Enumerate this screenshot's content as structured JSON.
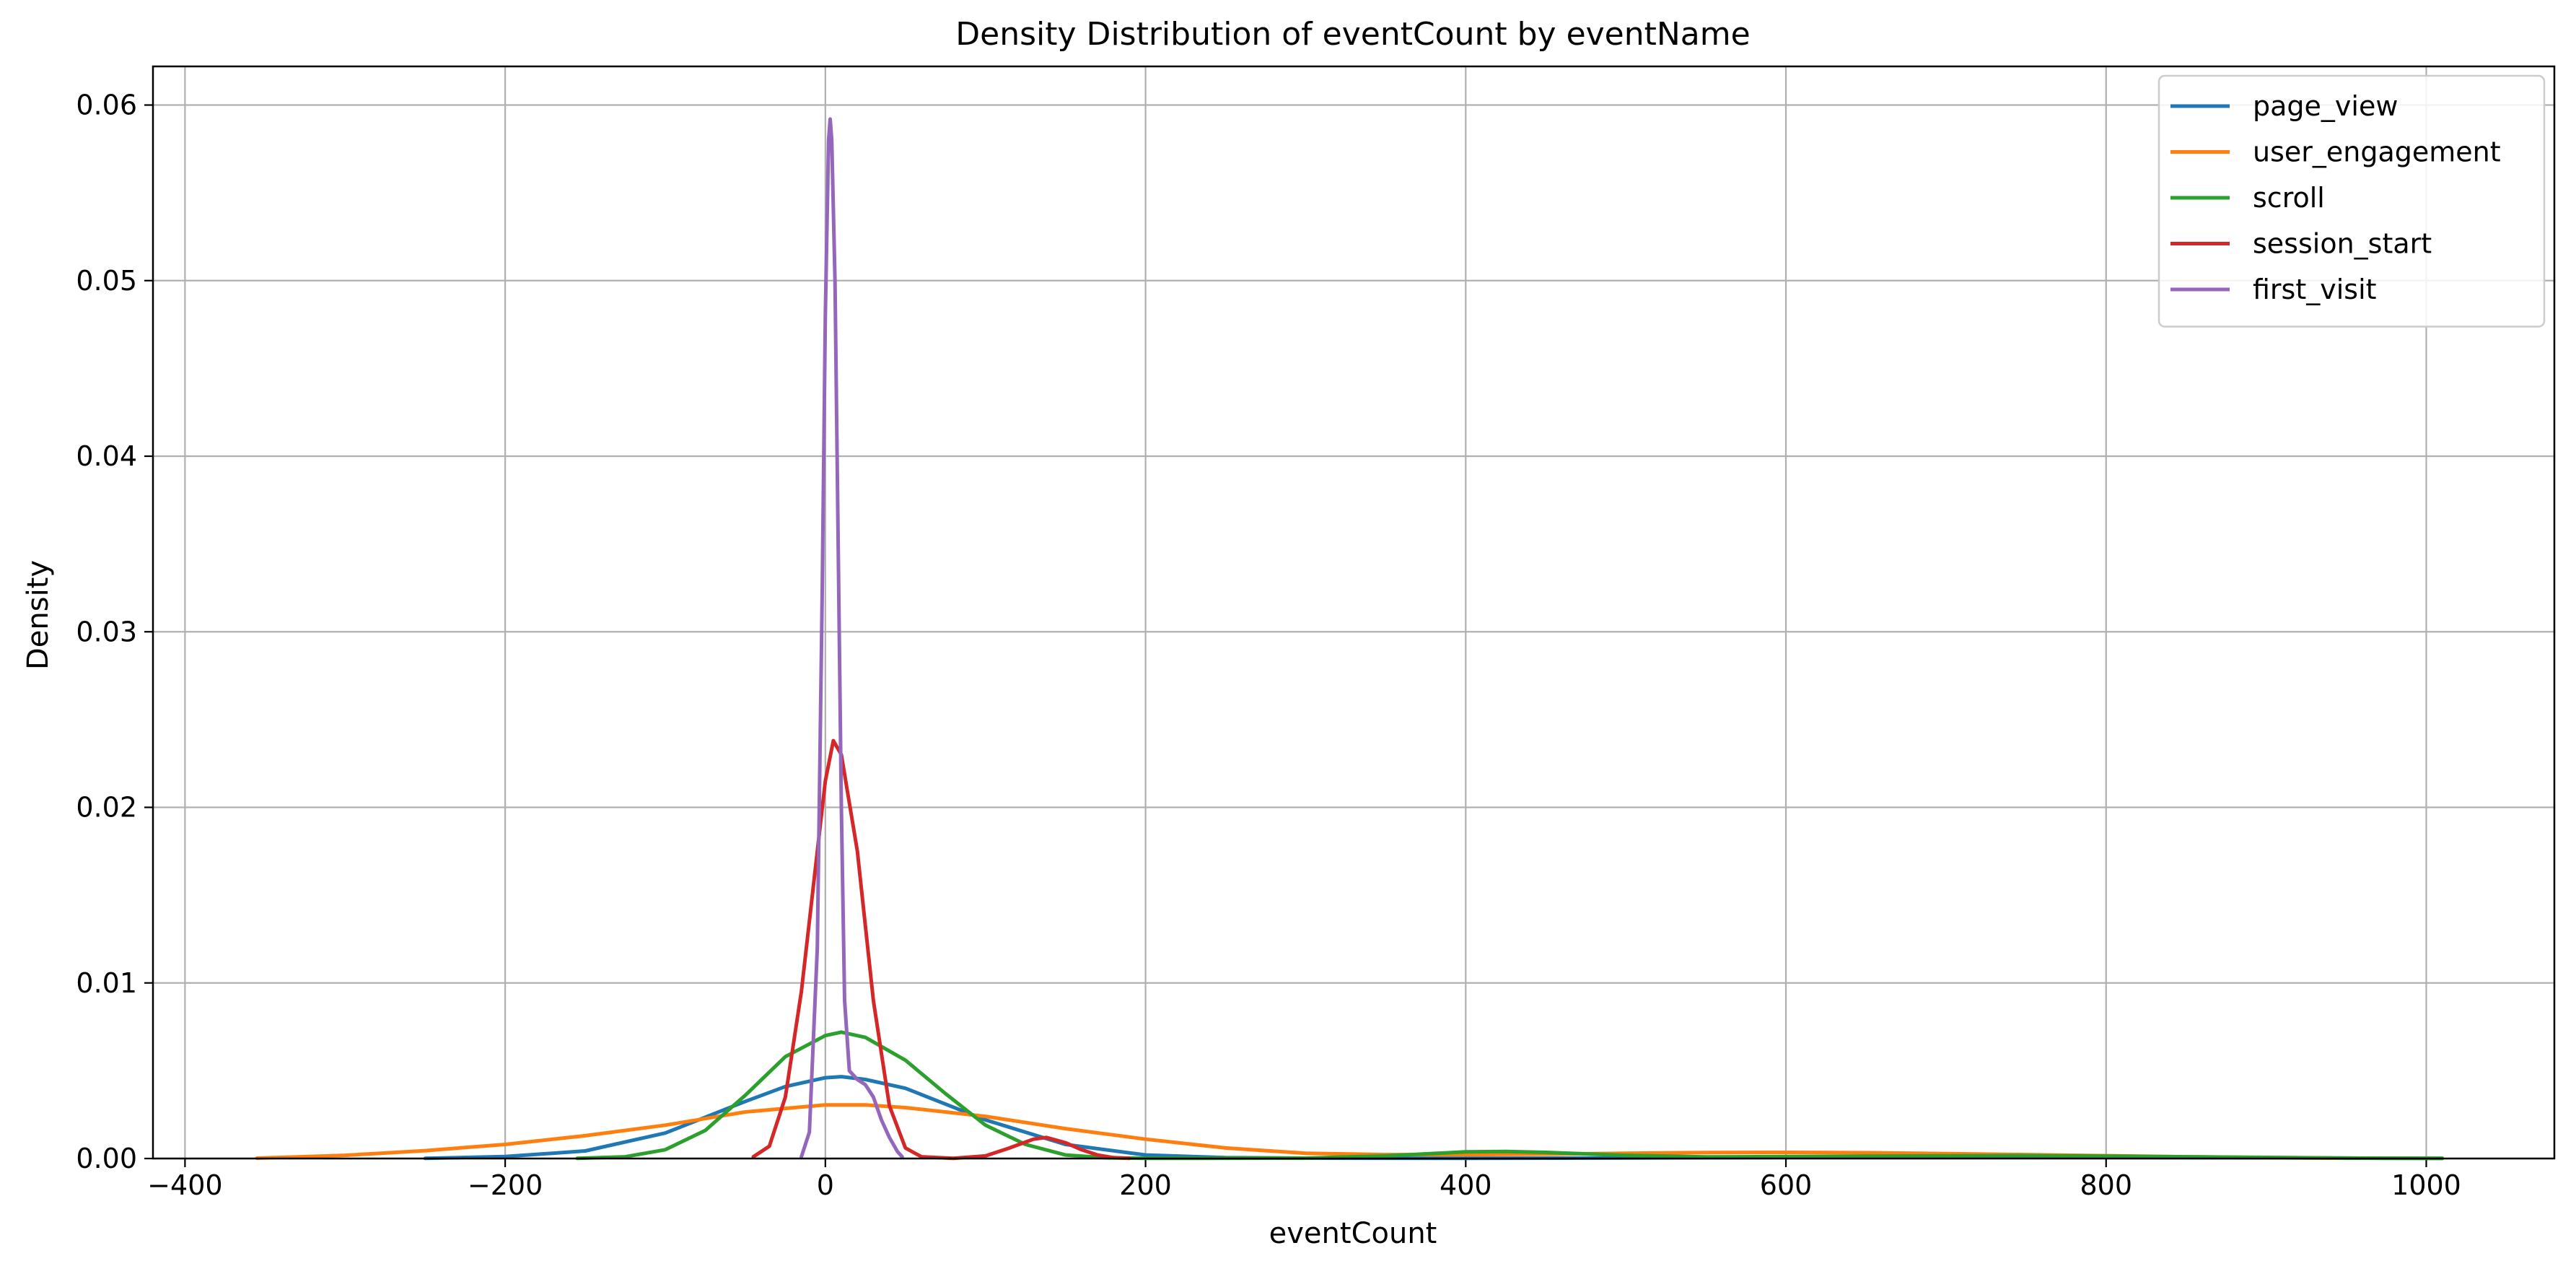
{
  "chart_data": {
    "type": "line",
    "title": "Density Distribution of eventCount by eventName",
    "xlabel": "eventCount",
    "ylabel": "Density",
    "xlim": [
      -420,
      1080
    ],
    "ylim": [
      0,
      0.0622
    ],
    "x_ticks": [
      -400,
      -200,
      0,
      200,
      400,
      600,
      800,
      1000
    ],
    "x_tick_labels": [
      "−400",
      "−200",
      "0",
      "200",
      "400",
      "600",
      "800",
      "1000"
    ],
    "y_ticks": [
      0,
      0.01,
      0.02,
      0.03,
      0.04,
      0.05,
      0.06
    ],
    "y_tick_labels": [
      "0.00",
      "0.01",
      "0.02",
      "0.03",
      "0.04",
      "0.05",
      "0.06"
    ],
    "grid": true,
    "legend_position": "top-right",
    "series": [
      {
        "name": "page_view",
        "color": "#1f77b4",
        "points": [
          [
            -250,
            1e-05
          ],
          [
            -200,
            0.00011
          ],
          [
            -150,
            0.00043
          ],
          [
            -100,
            0.00145
          ],
          [
            -50,
            0.00325
          ],
          [
            -25,
            0.0041
          ],
          [
            0,
            0.0046
          ],
          [
            10,
            0.00466
          ],
          [
            25,
            0.0045
          ],
          [
            50,
            0.004
          ],
          [
            75,
            0.0031
          ],
          [
            100,
            0.0022
          ],
          [
            150,
            0.0008
          ],
          [
            200,
            0.0002
          ],
          [
            250,
            5e-05
          ],
          [
            300,
            2e-05
          ],
          [
            400,
            1e-05
          ],
          [
            500,
            3e-05
          ],
          [
            600,
            6e-05
          ],
          [
            700,
            7e-05
          ],
          [
            800,
            6e-05
          ],
          [
            900,
            4e-05
          ],
          [
            960,
            2e-05
          ],
          [
            1010,
            1e-05
          ]
        ]
      },
      {
        "name": "user_engagement",
        "color": "#ff7f0e",
        "points": [
          [
            -355,
            2e-05
          ],
          [
            -300,
            0.00018
          ],
          [
            -250,
            0.00045
          ],
          [
            -200,
            0.0008
          ],
          [
            -150,
            0.0013
          ],
          [
            -100,
            0.0019
          ],
          [
            -50,
            0.00265
          ],
          [
            0,
            0.00305
          ],
          [
            25,
            0.00305
          ],
          [
            50,
            0.0029
          ],
          [
            100,
            0.0024
          ],
          [
            150,
            0.0017
          ],
          [
            200,
            0.0011
          ],
          [
            250,
            0.0006
          ],
          [
            300,
            0.0003
          ],
          [
            350,
            0.00022
          ],
          [
            400,
            0.00022
          ],
          [
            450,
            0.00025
          ],
          [
            500,
            0.0003
          ],
          [
            550,
            0.00034
          ],
          [
            600,
            0.00035
          ],
          [
            650,
            0.00033
          ],
          [
            700,
            0.00028
          ],
          [
            750,
            0.00022
          ],
          [
            800,
            0.00016
          ],
          [
            850,
            0.0001
          ],
          [
            900,
            5e-05
          ],
          [
            945,
            2e-05
          ]
        ]
      },
      {
        "name": "scroll",
        "color": "#2ca02c",
        "points": [
          [
            -155,
            1e-05
          ],
          [
            -125,
            0.0001
          ],
          [
            -100,
            0.0005
          ],
          [
            -75,
            0.0016
          ],
          [
            -50,
            0.0036
          ],
          [
            -25,
            0.0058
          ],
          [
            0,
            0.007
          ],
          [
            10,
            0.0072
          ],
          [
            25,
            0.0069
          ],
          [
            50,
            0.0056
          ],
          [
            75,
            0.0037
          ],
          [
            100,
            0.0019
          ],
          [
            125,
            0.0008
          ],
          [
            150,
            0.0002
          ],
          [
            175,
            4e-05
          ],
          [
            200,
            1e-05
          ],
          [
            300,
            2e-05
          ],
          [
            350,
            0.00015
          ],
          [
            400,
            0.00038
          ],
          [
            425,
            0.0004
          ],
          [
            450,
            0.00035
          ],
          [
            500,
            0.00018
          ],
          [
            550,
            9e-05
          ],
          [
            600,
            0.00011
          ],
          [
            650,
            0.00013
          ],
          [
            700,
            0.00015
          ],
          [
            750,
            0.00016
          ],
          [
            800,
            0.00014
          ],
          [
            850,
            0.0001
          ],
          [
            900,
            6e-05
          ],
          [
            960,
            2e-05
          ],
          [
            1010,
            1e-05
          ]
        ]
      },
      {
        "name": "session_start",
        "color": "#d62728",
        "points": [
          [
            -45,
            0.0001
          ],
          [
            -35,
            0.0007
          ],
          [
            -25,
            0.0035
          ],
          [
            -15,
            0.0095
          ],
          [
            -5,
            0.0175
          ],
          [
            0,
            0.0215
          ],
          [
            5,
            0.0238
          ],
          [
            10,
            0.023
          ],
          [
            20,
            0.0175
          ],
          [
            30,
            0.009
          ],
          [
            40,
            0.003
          ],
          [
            50,
            0.0006
          ],
          [
            60,
            0.0001
          ],
          [
            80,
            1e-05
          ],
          [
            100,
            0.00015
          ],
          [
            115,
            0.0006
          ],
          [
            130,
            0.0011
          ],
          [
            138,
            0.0012
          ],
          [
            150,
            0.0009
          ],
          [
            160,
            0.0005
          ],
          [
            170,
            0.0002
          ],
          [
            180,
            5e-05
          ],
          [
            190,
            1e-05
          ]
        ]
      },
      {
        "name": "first_visit",
        "color": "#9467bd",
        "points": [
          [
            -15,
            0.0001
          ],
          [
            -10,
            0.0015
          ],
          [
            -5,
            0.012
          ],
          [
            -2,
            0.032
          ],
          [
            0,
            0.048
          ],
          [
            2,
            0.058
          ],
          [
            3,
            0.0592
          ],
          [
            4,
            0.058
          ],
          [
            6,
            0.05
          ],
          [
            8,
            0.035
          ],
          [
            10,
            0.02
          ],
          [
            12,
            0.009
          ],
          [
            15,
            0.005
          ],
          [
            20,
            0.0045
          ],
          [
            25,
            0.0042
          ],
          [
            30,
            0.0035
          ],
          [
            35,
            0.0022
          ],
          [
            40,
            0.0012
          ],
          [
            45,
            0.0004
          ],
          [
            48,
            0.0001
          ]
        ]
      }
    ]
  }
}
